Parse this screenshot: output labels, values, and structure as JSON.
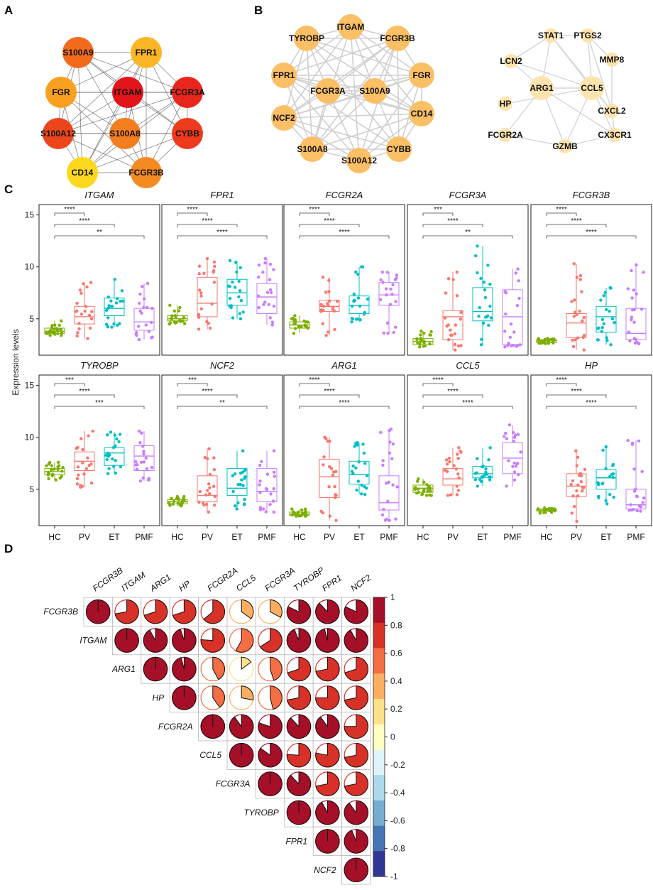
{
  "panels": {
    "a": "A",
    "b": "B",
    "c": "C",
    "d": "D"
  },
  "network_a": {
    "nodes": [
      {
        "id": "S100A9",
        "color": "#f26b1d"
      },
      {
        "id": "FPR1",
        "color": "#fbb626"
      },
      {
        "id": "FGR",
        "color": "#f9a021"
      },
      {
        "id": "ITGAM",
        "color": "#e3151b"
      },
      {
        "id": "FCGR3A",
        "color": "#e8261c"
      },
      {
        "id": "S100A12",
        "color": "#ec451c"
      },
      {
        "id": "S100A8",
        "color": "#f37e1f"
      },
      {
        "id": "CYBB",
        "color": "#ee3a1d"
      },
      {
        "id": "CD14",
        "color": "#fbd81e"
      },
      {
        "id": "FCGR3B",
        "color": "#f48a22"
      }
    ]
  },
  "network_b1": {
    "color": "#fbbf66",
    "nodes": [
      "ITGAM",
      "TYROBP",
      "FCGR3B",
      "FPR1",
      "FGR",
      "FCGR3A",
      "S100A9",
      "CD14",
      "NCF2",
      "S100A8",
      "CYBB",
      "S100A12"
    ]
  },
  "network_b2": {
    "color": "#fde3ad",
    "nodes": [
      "STAT1",
      "PTGS2",
      "LCN2",
      "MMP8",
      "ARG1",
      "CCL5",
      "HP",
      "CXCL2",
      "FCGR2A",
      "CX3CR1",
      "GZMB"
    ]
  },
  "chart_data": {
    "type": "box",
    "ylabel": "Expression levels",
    "ylim": [
      1.5,
      16
    ],
    "yticks": [
      5,
      10,
      15
    ],
    "categories": [
      "HC",
      "PV",
      "ET",
      "PMF"
    ],
    "category_colors": [
      "#7cae00",
      "#f8766d",
      "#00bfc4",
      "#c77cff"
    ],
    "panels": [
      {
        "gene": "ITGAM",
        "sig": [
          "****",
          "****",
          "**"
        ],
        "boxes": [
          [
            3.4,
            3.6,
            3.8,
            4.1,
            4.8
          ],
          [
            3.1,
            4.5,
            5.2,
            6.2,
            8.5
          ],
          [
            4.2,
            5.3,
            6.0,
            7.0,
            8.8
          ],
          [
            3.0,
            3.9,
            4.7,
            6.0,
            8.4
          ]
        ]
      },
      {
        "gene": "FPR1",
        "sig": [
          "****",
          "****",
          "****"
        ],
        "boxes": [
          [
            4.5,
            4.8,
            5.0,
            5.3,
            6.3
          ],
          [
            4.0,
            5.2,
            6.5,
            9.0,
            10.8
          ],
          [
            5.0,
            6.3,
            7.5,
            8.8,
            10.6
          ],
          [
            4.4,
            5.5,
            7.1,
            8.4,
            10.8
          ]
        ]
      },
      {
        "gene": "FCGR2A",
        "sig": [
          "****",
          "****",
          "****"
        ],
        "boxes": [
          [
            3.6,
            4.1,
            4.4,
            4.7,
            5.3
          ],
          [
            3.4,
            5.7,
            6.2,
            6.8,
            9.0
          ],
          [
            4.7,
            5.5,
            6.3,
            7.2,
            10.0
          ],
          [
            3.6,
            6.3,
            7.3,
            8.5,
            9.5
          ]
        ]
      },
      {
        "gene": "FCGR3A",
        "sig": [
          "***",
          "****",
          "**"
        ],
        "boxes": [
          [
            2.3,
            2.5,
            2.8,
            3.1,
            3.8
          ],
          [
            2.0,
            3.0,
            5.2,
            5.8,
            9.5
          ],
          [
            2.5,
            4.8,
            5.7,
            8.0,
            12.0
          ],
          [
            2.3,
            2.5,
            5.2,
            7.8,
            9.8
          ]
        ]
      },
      {
        "gene": "FCGR3B",
        "sig": [
          "****",
          "****",
          "****"
        ],
        "boxes": [
          [
            2.6,
            2.7,
            2.9,
            3.0,
            3.1
          ],
          [
            2.0,
            3.2,
            4.6,
            5.5,
            10.3
          ],
          [
            2.5,
            3.7,
            5.2,
            6.2,
            8.0
          ],
          [
            2.6,
            3.0,
            3.6,
            6.0,
            10.2
          ]
        ]
      },
      {
        "gene": "TYROBP",
        "sig": [
          "***",
          "****",
          "***"
        ],
        "boxes": [
          [
            5.9,
            6.4,
            6.7,
            7.0,
            7.6
          ],
          [
            5.2,
            6.8,
            7.7,
            8.6,
            10.6
          ],
          [
            6.5,
            7.3,
            8.5,
            9.0,
            10.5
          ],
          [
            5.8,
            6.8,
            8.2,
            9.2,
            10.6
          ]
        ]
      },
      {
        "gene": "NCF2",
        "sig": [
          "***",
          "****",
          "**"
        ],
        "boxes": [
          [
            3.4,
            3.6,
            3.8,
            4.0,
            4.3
          ],
          [
            2.8,
            3.8,
            4.4,
            6.3,
            8.9
          ],
          [
            3.1,
            4.4,
            5.1,
            7.0,
            8.7
          ],
          [
            2.8,
            3.8,
            4.8,
            7.0,
            8.7
          ]
        ]
      },
      {
        "gene": "ARG1",
        "sig": [
          "****",
          "****",
          "****"
        ],
        "boxes": [
          [
            2.4,
            2.5,
            2.6,
            2.8,
            3.1
          ],
          [
            2.0,
            4.2,
            6.2,
            7.9,
            10.0
          ],
          [
            4.5,
            5.5,
            6.4,
            7.7,
            9.5
          ],
          [
            2.0,
            3.0,
            3.7,
            6.3,
            10.8
          ]
        ]
      },
      {
        "gene": "CCL5",
        "sig": [
          "****",
          "****",
          "****"
        ],
        "boxes": [
          [
            4.4,
            4.7,
            5.1,
            5.4,
            6.0
          ],
          [
            4.4,
            5.4,
            6.0,
            7.0,
            9.0
          ],
          [
            5.3,
            6.1,
            6.5,
            7.2,
            9.0
          ],
          [
            5.3,
            6.5,
            8.0,
            9.5,
            11.2
          ]
        ]
      },
      {
        "gene": "HP",
        "sig": [
          "****",
          "****",
          "****"
        ],
        "boxes": [
          [
            2.7,
            2.9,
            3.0,
            3.1,
            3.2
          ],
          [
            1.9,
            4.3,
            5.3,
            6.5,
            8.7
          ],
          [
            3.6,
            5.0,
            6.1,
            6.9,
            9.1
          ],
          [
            2.9,
            3.1,
            3.5,
            5.0,
            9.7
          ]
        ]
      }
    ],
    "correlation": {
      "type": "correlation-pie",
      "genes": [
        "FCGR3B",
        "ITGAM",
        "ARG1",
        "HP",
        "FCGR2A",
        "CCL5",
        "FCGR3A",
        "TYROBP",
        "FPR1",
        "NCF2"
      ],
      "matrix": [
        [
          1.0,
          0.72,
          0.7,
          0.7,
          0.64,
          0.35,
          0.33,
          0.82,
          0.88,
          0.82
        ],
        [
          0.72,
          1.0,
          0.92,
          0.95,
          0.76,
          0.58,
          0.66,
          0.94,
          0.96,
          0.92
        ],
        [
          0.7,
          0.92,
          1.0,
          0.96,
          0.42,
          0.15,
          0.45,
          0.7,
          0.72,
          0.7
        ],
        [
          0.7,
          0.95,
          0.96,
          1.0,
          0.4,
          0.28,
          0.46,
          0.72,
          0.75,
          0.72
        ],
        [
          0.64,
          0.76,
          0.42,
          0.4,
          1.0,
          0.9,
          0.8,
          0.88,
          0.9,
          0.75
        ],
        [
          0.35,
          0.58,
          0.15,
          0.28,
          0.9,
          1.0,
          0.85,
          0.76,
          0.78,
          0.72
        ],
        [
          0.33,
          0.66,
          0.45,
          0.46,
          0.8,
          0.85,
          1.0,
          0.88,
          0.72,
          0.72
        ],
        [
          0.82,
          0.94,
          0.7,
          0.72,
          0.88,
          0.76,
          0.88,
          1.0,
          0.92,
          0.9
        ],
        [
          0.88,
          0.96,
          0.72,
          0.75,
          0.9,
          0.78,
          0.72,
          0.92,
          1.0,
          0.94
        ],
        [
          0.82,
          0.92,
          0.7,
          0.72,
          0.75,
          0.72,
          0.72,
          0.9,
          0.94,
          1.0
        ]
      ],
      "colorbar_ticks": [
        "1",
        "0.8",
        "0.6",
        "0.4",
        "0.2",
        "0",
        "-0.2",
        "-0.4",
        "-0.6",
        "-0.8",
        "-1"
      ],
      "colorbar_colors": [
        "#a50f27",
        "#d73128",
        "#f46d43",
        "#fdae61",
        "#fee08b",
        "#ffffbf",
        "#e0f3f8",
        "#abd9e9",
        "#74add1",
        "#4575b4",
        "#313695"
      ]
    }
  }
}
